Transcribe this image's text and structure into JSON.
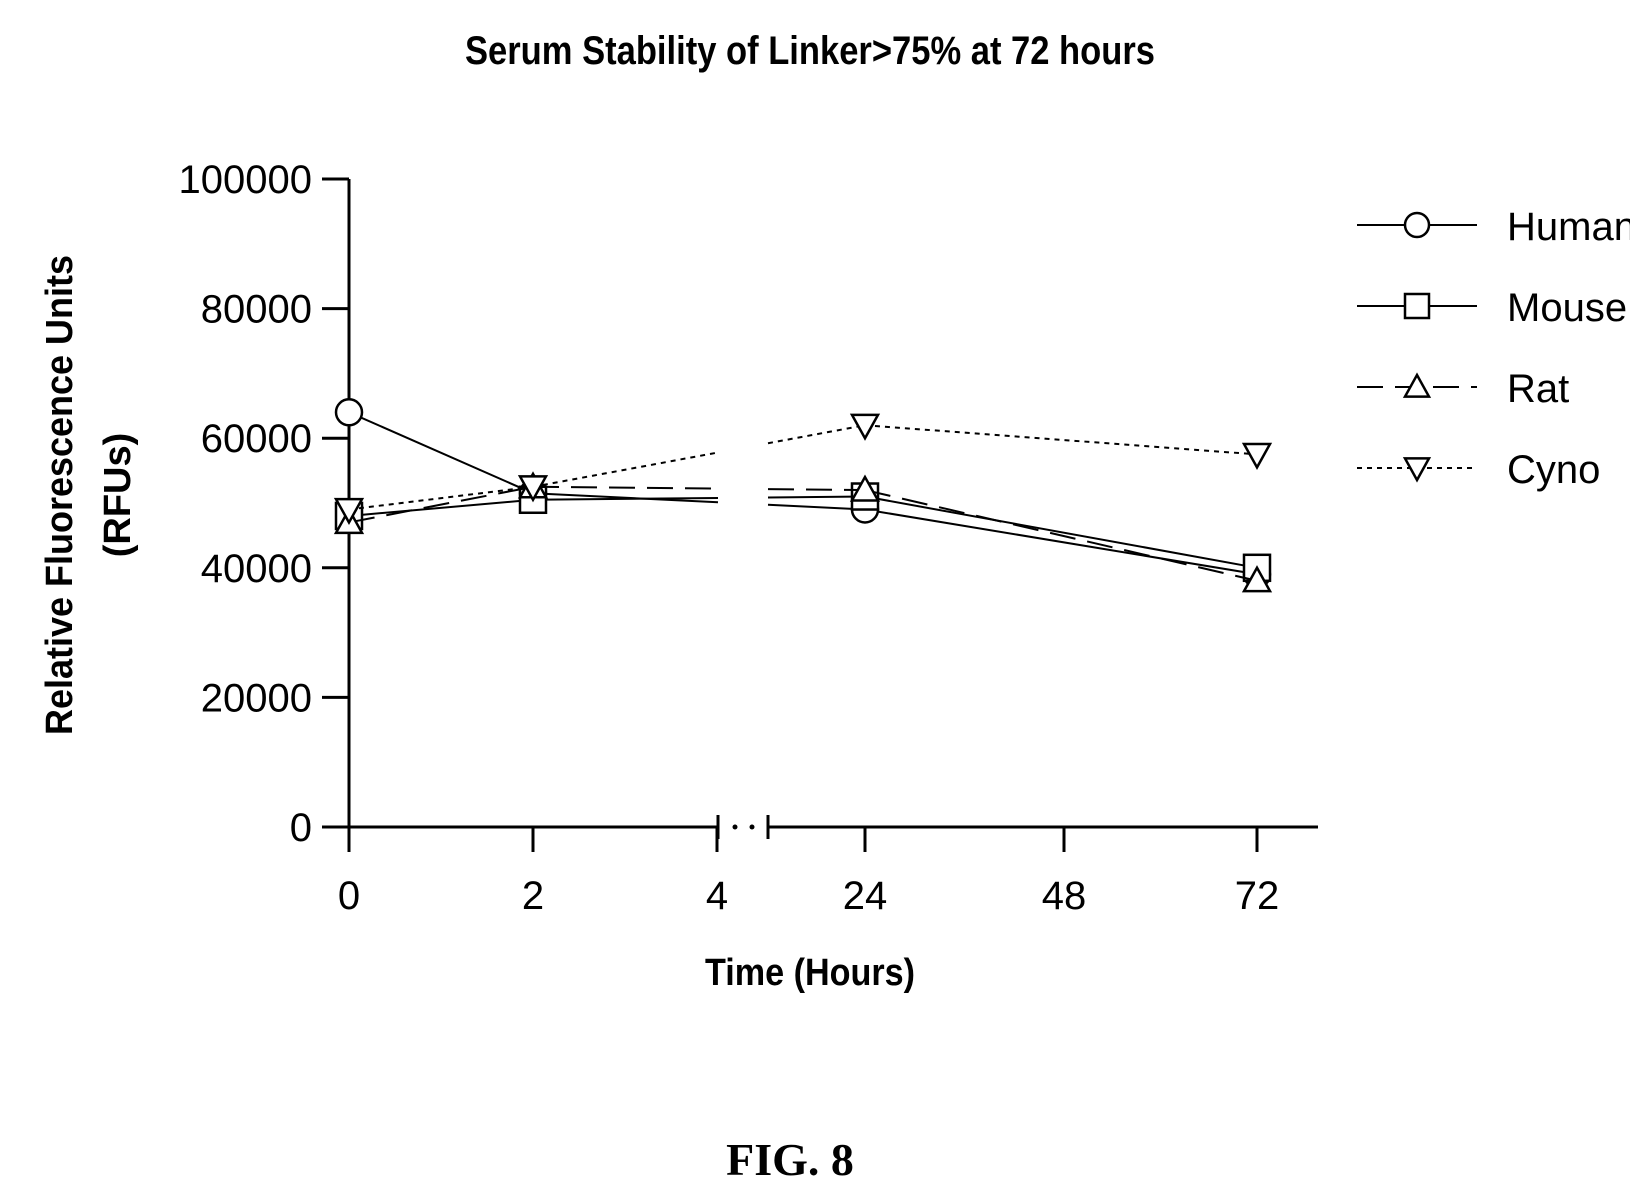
{
  "chart_data": {
    "type": "line",
    "title": "Serum Stability of Linker>75% at 72 hours",
    "xlabel": "Time (Hours)",
    "ylabel_line1": "Relative Fluorescence Units",
    "ylabel_line2": "(RFUs)",
    "categories": [
      "0",
      "2",
      "4",
      "24",
      "48",
      "72"
    ],
    "x_axis_break": "between 4 and 24",
    "ylim": [
      0,
      100000
    ],
    "yticks": [
      "0",
      "20000",
      "40000",
      "60000",
      "80000",
      "100000"
    ],
    "legend_position": "right",
    "grid": false,
    "series": [
      {
        "name": "Human",
        "marker": "circle",
        "line_style": "solid",
        "x": [
          "0",
          "2",
          "24",
          "72"
        ],
        "values": [
          64000,
          51500,
          49000,
          39000
        ]
      },
      {
        "name": "Mouse",
        "marker": "square",
        "line_style": "solid",
        "x": [
          "0",
          "2",
          "24",
          "72"
        ],
        "values": [
          48000,
          50500,
          51000,
          40000
        ]
      },
      {
        "name": "Rat",
        "marker": "triangle-up",
        "line_style": "long-dash",
        "x": [
          "0",
          "2",
          "24",
          "72"
        ],
        "values": [
          47000,
          52500,
          52000,
          38000
        ]
      },
      {
        "name": "Cyno",
        "marker": "triangle-down",
        "line_style": "dotted",
        "x": [
          "0",
          "2",
          "24",
          "72"
        ],
        "values": [
          49000,
          52500,
          62000,
          57500
        ]
      }
    ]
  },
  "figure_label": "FIG. 8"
}
